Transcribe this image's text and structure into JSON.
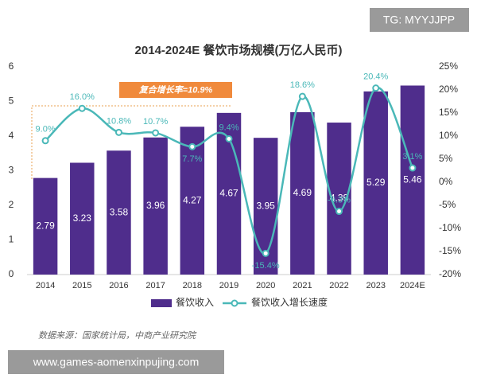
{
  "chart_data": {
    "type": "bar",
    "title": "2014-2024E 餐饮市场规模(万亿人民币)",
    "annotation": "复合增长率=10.9%",
    "source": "数据来源：国家统计局，中商产业研究院",
    "categories": [
      "2014",
      "2015",
      "2016",
      "2017",
      "2018",
      "2019",
      "2020",
      "2021",
      "2022",
      "2023",
      "2024E"
    ],
    "series": [
      {
        "name": "餐饮收入",
        "color": "#4f2d8c",
        "values": [
          2.79,
          3.23,
          3.58,
          3.96,
          4.27,
          4.67,
          3.95,
          4.69,
          4.39,
          5.29,
          5.46
        ]
      },
      {
        "name": "餐饮收入增长速度",
        "color": "#4ab8b8",
        "axis": "y2",
        "smooth": true,
        "values": [
          9.0,
          16.0,
          10.8,
          10.7,
          7.7,
          9.4,
          -15.4,
          18.6,
          -6.3,
          20.4,
          3.1
        ],
        "value_labels": [
          "9.0%",
          "16.0%",
          "10.8%",
          "10.7%",
          "7.7%",
          "9.4%",
          "-15.4%",
          "18.6%",
          "-6.3%",
          "20.4%",
          "3.1%"
        ]
      }
    ],
    "ylim": [
      0,
      6
    ],
    "yticks": [
      0,
      1,
      2,
      3,
      4,
      5,
      6
    ],
    "y2lim": [
      -20,
      25
    ],
    "y2ticks": [
      {
        "value": -20,
        "label": "-20%"
      },
      {
        "value": -15,
        "label": "-15%"
      },
      {
        "value": -10,
        "label": "-10%"
      },
      {
        "value": -5,
        "label": "-5%"
      },
      {
        "value": 0,
        "label": "0%"
      },
      {
        "value": 5,
        "label": "5%"
      },
      {
        "value": 10,
        "label": "10%"
      },
      {
        "value": 15,
        "label": "15%"
      },
      {
        "value": 20,
        "label": "20%"
      },
      {
        "value": 25,
        "label": "25%"
      }
    ],
    "grid": false,
    "legend": "bottom"
  },
  "watermarks": [
    "TG: MYYJJPP",
    "www.games-aomenxinpujing.com"
  ]
}
